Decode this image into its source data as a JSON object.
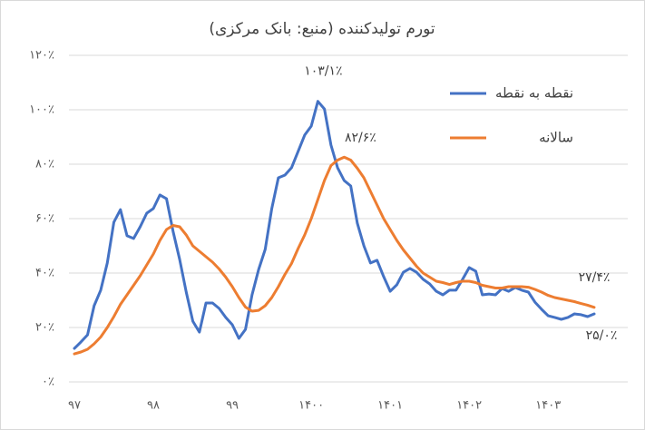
{
  "chart_data": {
    "type": "line",
    "title": "تورم تولیدکننده (منبع: بانک مرکزی)",
    "categories": [
      "۹۷",
      null,
      null,
      null,
      null,
      null,
      null,
      null,
      null,
      null,
      null,
      null,
      "۹۸",
      null,
      null,
      null,
      null,
      null,
      null,
      null,
      null,
      null,
      null,
      null,
      "۹۹",
      null,
      null,
      null,
      null,
      null,
      null,
      null,
      null,
      null,
      null,
      null,
      "۱۴۰۰",
      null,
      null,
      null,
      null,
      null,
      null,
      null,
      null,
      null,
      null,
      null,
      "۱۴۰۱",
      null,
      null,
      null,
      null,
      null,
      null,
      null,
      null,
      null,
      null,
      null,
      "۱۴۰۲",
      null,
      null,
      null,
      null,
      null,
      null,
      null,
      null,
      null,
      null,
      null,
      "۱۴۰۳",
      null,
      null,
      null,
      null,
      null,
      null,
      null
    ],
    "series": [
      {
        "name": "نقطه به نقطه",
        "color": "#4472c4",
        "values": [
          12.3,
          14.7,
          17.3,
          28,
          33.7,
          43.7,
          58.7,
          63.3,
          53.7,
          52.7,
          57,
          62,
          63.7,
          68.7,
          67.3,
          55.3,
          45,
          33,
          22.3,
          18.3,
          29,
          29,
          27,
          23.7,
          21,
          16,
          19.3,
          32,
          41.3,
          48.7,
          63.7,
          75,
          76,
          78.7,
          84.7,
          90.7,
          94,
          103.1,
          100.3,
          87,
          78.7,
          74,
          72,
          58.3,
          50,
          43.7,
          44.7,
          38.7,
          33.3,
          35.7,
          40.3,
          41.7,
          40.3,
          37.7,
          36,
          33.3,
          32,
          33.7,
          33.7,
          37.7,
          42,
          40.7,
          32,
          32.3,
          32,
          34.3,
          33.3,
          34.7,
          33.7,
          33,
          29.3,
          26.7,
          24.3,
          23.7,
          23,
          23.7,
          25,
          24.7,
          24,
          25.0
        ],
        "value_labels": [
          null,
          null,
          null,
          null,
          null,
          null,
          null,
          null,
          null,
          null,
          null,
          null,
          null,
          null,
          null,
          null,
          null,
          null,
          null,
          null,
          null,
          null,
          null,
          null,
          null,
          null,
          null,
          null,
          null,
          null,
          null,
          null,
          null,
          null,
          null,
          null,
          null,
          "۱۰۳/۱٪",
          null,
          null,
          null,
          null,
          null,
          null,
          null,
          null,
          null,
          null,
          null,
          null,
          null,
          null,
          null,
          null,
          null,
          null,
          null,
          null,
          null,
          null,
          null,
          null,
          null,
          null,
          null,
          null,
          null,
          null,
          null,
          null,
          null,
          null,
          null,
          null,
          null,
          null,
          null,
          null,
          null,
          "۲۵/۰٪"
        ]
      },
      {
        "name": "سالانه",
        "color": "#ed7d31",
        "values": [
          10.3,
          11,
          12,
          14,
          16.5,
          20,
          24,
          28.5,
          32,
          35.5,
          39,
          43,
          47,
          52,
          56,
          57.5,
          57,
          54,
          50,
          48,
          46,
          44,
          41.5,
          38.5,
          35,
          31,
          27.5,
          26,
          26.3,
          28,
          31,
          35,
          39.5,
          43.5,
          49,
          54,
          60,
          67,
          74,
          79.5,
          81.5,
          82.6,
          81.5,
          78.5,
          75,
          70,
          65,
          60,
          56,
          52,
          48.5,
          45.5,
          42.5,
          40,
          38.5,
          37,
          36.5,
          35.8,
          36.5,
          37,
          37,
          36.5,
          35.5,
          35,
          34.5,
          34.5,
          35,
          35,
          35,
          34.8,
          34,
          33,
          31.8,
          31,
          30.5,
          30,
          29.5,
          28.8,
          28.2,
          27.4
        ],
        "value_labels": [
          null,
          null,
          null,
          null,
          null,
          null,
          null,
          null,
          null,
          null,
          null,
          null,
          null,
          null,
          null,
          null,
          null,
          null,
          null,
          null,
          null,
          null,
          null,
          null,
          null,
          null,
          null,
          null,
          null,
          null,
          null,
          null,
          null,
          null,
          null,
          null,
          null,
          null,
          null,
          null,
          null,
          "۸۲/۶٪",
          null,
          null,
          null,
          null,
          null,
          null,
          null,
          null,
          null,
          null,
          null,
          null,
          null,
          null,
          null,
          null,
          null,
          null,
          null,
          null,
          null,
          null,
          null,
          null,
          null,
          null,
          null,
          null,
          null,
          null,
          null,
          null,
          null,
          null,
          null,
          null,
          null,
          "۲۷/۴٪"
        ]
      }
    ],
    "ylim": [
      0,
      120
    ],
    "yticks": [
      {
        "value": 0,
        "label": "۰٪"
      },
      {
        "value": 20,
        "label": "۲۰٪"
      },
      {
        "value": 40,
        "label": "۴۰٪"
      },
      {
        "value": 60,
        "label": "۶۰٪"
      },
      {
        "value": 80,
        "label": "۸۰٪"
      },
      {
        "value": 100,
        "label": "۱۰۰٪"
      },
      {
        "value": 120,
        "label": "۱۲۰٪"
      }
    ],
    "grid": true,
    "legend": "upper-right"
  }
}
